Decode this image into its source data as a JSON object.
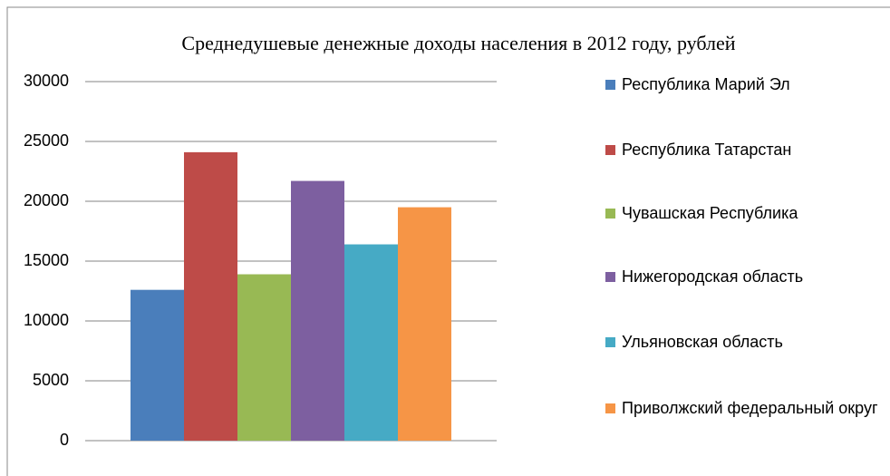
{
  "chart_data": {
    "type": "bar",
    "title": "Среднедушевые денежные доходы населения в 2012 году, рублей",
    "categories": [
      null
    ],
    "series": [
      {
        "name": "Республика Марий Эл",
        "color": "#4a7ebb",
        "values": [
          12600
        ]
      },
      {
        "name": "Республика Татарстан",
        "color": "#be4b48",
        "values": [
          24100
        ]
      },
      {
        "name": "Чувашская Республика",
        "color": "#98b954",
        "values": [
          13900
        ]
      },
      {
        "name": "Нижегородская область",
        "color": "#7d5fa0",
        "values": [
          21700
        ]
      },
      {
        "name": "Ульяновская область",
        "color": "#46aac5",
        "values": [
          16400
        ]
      },
      {
        "name": "Приволжский федеральный округ",
        "color": "#f69546",
        "values": [
          19500
        ]
      }
    ],
    "ylim": [
      0,
      30000
    ],
    "yticks": [
      0,
      5000,
      10000,
      15000,
      20000,
      25000,
      30000
    ],
    "grid": true,
    "legend": "right"
  }
}
